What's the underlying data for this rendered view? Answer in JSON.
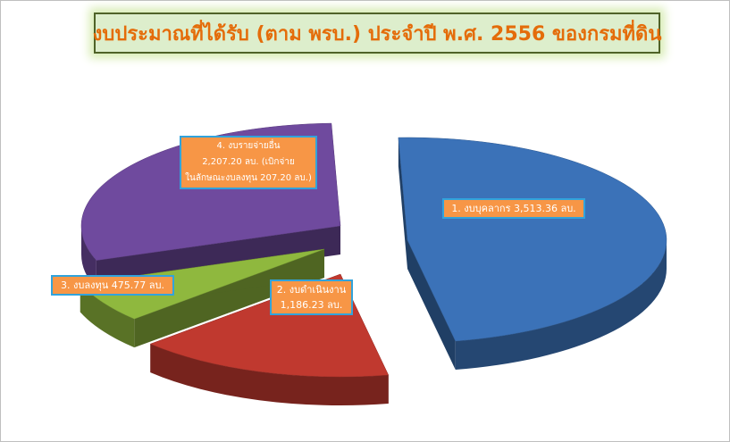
{
  "title": "งบประมาณที่ได้รับ (ตาม พรบ.) ประจำปี พ.ศ. 2556 ของกรมที่ดิน",
  "chart_data": {
    "type": "pie",
    "title": "งบประมาณที่ได้รับ (ตาม พรบ.) ประจำปี พ.ศ. 2556 ของกรมที่ดิน",
    "unit": "ลบ.",
    "slices": [
      {
        "name": "งบบุคลากร",
        "value": 3513.36,
        "color": "#3b72b8",
        "label_lines": [
          "1. งบบุคลากร 3,513.36 ลบ."
        ]
      },
      {
        "name": "งบดำเนินงาน",
        "value": 1186.23,
        "color": "#c0392f",
        "label_lines": [
          "2. งบดำเนินงาน",
          "1,186.23 ลบ."
        ]
      },
      {
        "name": "งบลงทุน",
        "value": 475.77,
        "color": "#8fb83e",
        "label_lines": [
          "3. งบลงทุน 475.77 ลบ."
        ]
      },
      {
        "name": "งบรายจ่ายอื่น",
        "value": 2207.2,
        "color": "#6f4a9e",
        "label_lines": [
          "4. งบรายจ่ายอื่น",
          "2,207.20 ลบ. (เบิกจ่าย",
          "ในลักษณะงบลงทุน 207.20 ลบ.)"
        ]
      }
    ],
    "exploded": true,
    "legend": "none"
  }
}
